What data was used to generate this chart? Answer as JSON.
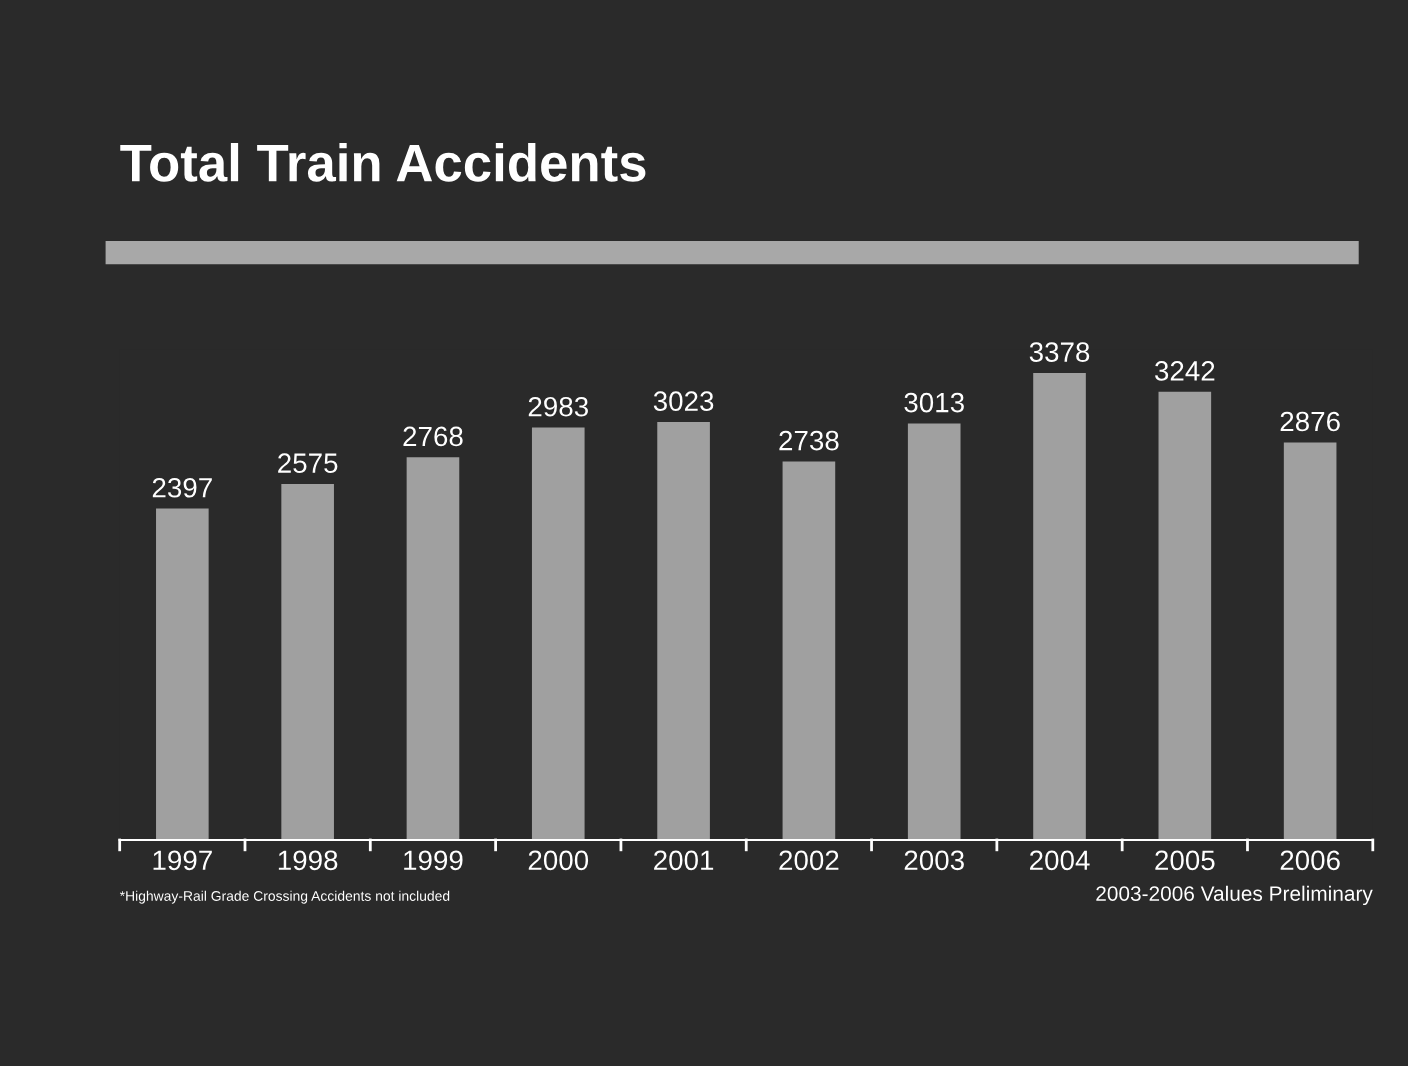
{
  "chart_data": {
    "type": "bar",
    "title": "Total Train Accidents",
    "categories": [
      "1997",
      "1998",
      "1999",
      "2000",
      "2001",
      "2002",
      "2003",
      "2004",
      "2005",
      "2006"
    ],
    "values": [
      2397,
      2575,
      2768,
      2983,
      3023,
      2738,
      3013,
      3378,
      3242,
      2876
    ],
    "color": "#a0a0a0",
    "data_labels": true,
    "annotations": [
      "*Highway-Rail Grade Crossing Accidents not included",
      "2003-2006 Values Preliminary"
    ]
  }
}
